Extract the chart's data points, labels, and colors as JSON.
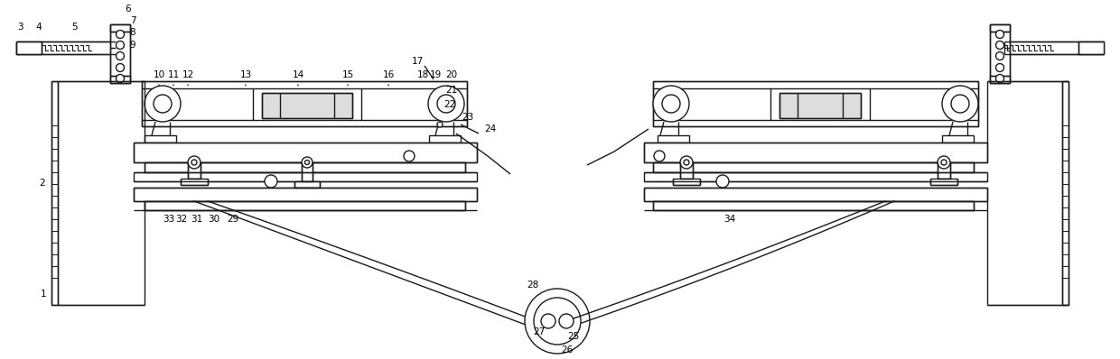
{
  "bg_color": "#ffffff",
  "line_color": "#1a1a1a",
  "lw": 1.0,
  "fig_width": 12.4,
  "fig_height": 3.98,
  "dpi": 100
}
